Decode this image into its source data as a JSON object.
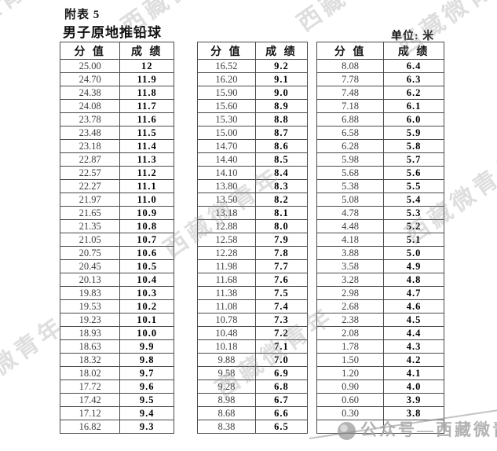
{
  "page": {
    "appendix_label": "附表 5",
    "title": "男子原地推铅球",
    "unit_label": "单位: 米"
  },
  "table_headers": {
    "score": "分 值",
    "result": "成 绩"
  },
  "tables": [
    {
      "rows": [
        [
          "25.00",
          "12"
        ],
        [
          "24.70",
          "11.9"
        ],
        [
          "24.38",
          "11.8"
        ],
        [
          "24.08",
          "11.7"
        ],
        [
          "23.78",
          "11.6"
        ],
        [
          "23.48",
          "11.5"
        ],
        [
          "23.18",
          "11.4"
        ],
        [
          "22.87",
          "11.3"
        ],
        [
          "22.57",
          "11.2"
        ],
        [
          "22.27",
          "11.1"
        ],
        [
          "21.97",
          "11.0"
        ],
        [
          "21.65",
          "10.9"
        ],
        [
          "21.35",
          "10.8"
        ],
        [
          "21.05",
          "10.7"
        ],
        [
          "20.75",
          "10.6"
        ],
        [
          "20.45",
          "10.5"
        ],
        [
          "20.13",
          "10.4"
        ],
        [
          "19.83",
          "10.3"
        ],
        [
          "19.53",
          "10.2"
        ],
        [
          "19.23",
          "10.1"
        ],
        [
          "18.93",
          "10.0"
        ],
        [
          "18.63",
          "9.9"
        ],
        [
          "18.32",
          "9.8"
        ],
        [
          "18.02",
          "9.7"
        ],
        [
          "17.72",
          "9.6"
        ],
        [
          "17.42",
          "9.5"
        ],
        [
          "17.12",
          "9.4"
        ],
        [
          "16.82",
          "9.3"
        ]
      ]
    },
    {
      "rows": [
        [
          "16.52",
          "9.2"
        ],
        [
          "16.20",
          "9.1"
        ],
        [
          "15.90",
          "9.0"
        ],
        [
          "15.60",
          "8.9"
        ],
        [
          "15.30",
          "8.8"
        ],
        [
          "15.00",
          "8.7"
        ],
        [
          "14.70",
          "8.6"
        ],
        [
          "14.40",
          "8.5"
        ],
        [
          "14.10",
          "8.4"
        ],
        [
          "13.80",
          "8.3"
        ],
        [
          "13.50",
          "8.2"
        ],
        [
          "13.18",
          "8.1"
        ],
        [
          "12.88",
          "8.0"
        ],
        [
          "12.58",
          "7.9"
        ],
        [
          "12.28",
          "7.8"
        ],
        [
          "11.98",
          "7.7"
        ],
        [
          "11.68",
          "7.6"
        ],
        [
          "11.38",
          "7.5"
        ],
        [
          "11.08",
          "7.4"
        ],
        [
          "10.78",
          "7.3"
        ],
        [
          "10.48",
          "7.2"
        ],
        [
          "10.18",
          "7.1"
        ],
        [
          "9.88",
          "7.0"
        ],
        [
          "9.58",
          "6.9"
        ],
        [
          "9.28",
          "6.8"
        ],
        [
          "8.98",
          "6.7"
        ],
        [
          "8.68",
          "6.6"
        ],
        [
          "8.38",
          "6.5"
        ]
      ]
    },
    {
      "rows": [
        [
          "8.08",
          "6.4"
        ],
        [
          "7.78",
          "6.3"
        ],
        [
          "7.48",
          "6.2"
        ],
        [
          "7.18",
          "6.1"
        ],
        [
          "6.88",
          "6.0"
        ],
        [
          "6.58",
          "5.9"
        ],
        [
          "6.28",
          "5.8"
        ],
        [
          "5.98",
          "5.7"
        ],
        [
          "5.68",
          "5.6"
        ],
        [
          "5.38",
          "5.5"
        ],
        [
          "5.08",
          "5.4"
        ],
        [
          "4.78",
          "5.3"
        ],
        [
          "4.48",
          "5.2"
        ],
        [
          "4.18",
          "5.1"
        ],
        [
          "3.88",
          "5.0"
        ],
        [
          "3.58",
          "4.9"
        ],
        [
          "3.28",
          "4.8"
        ],
        [
          "2.98",
          "4.7"
        ],
        [
          "2.68",
          "4.6"
        ],
        [
          "2.38",
          "4.5"
        ],
        [
          "2.08",
          "4.4"
        ],
        [
          "1.78",
          "4.3"
        ],
        [
          "1.50",
          "4.2"
        ],
        [
          "1.20",
          "4.1"
        ],
        [
          "0.90",
          "4.0"
        ],
        [
          "0.60",
          "3.9"
        ],
        [
          "0.30",
          "3.8"
        ],
        [
          "",
          ""
        ]
      ]
    }
  ],
  "watermark": {
    "text": "西藏微青年",
    "account_text": "公众号—西藏微青年",
    "logo_icon": "wechat-official-account-logo",
    "color": "#9e9e9e"
  }
}
